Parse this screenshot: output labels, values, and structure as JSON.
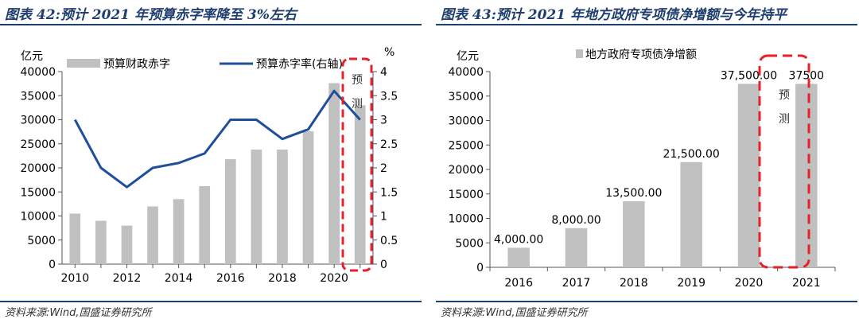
{
  "left": {
    "title": "图表 42:预计 2021 年预算赤字率降至 3%左右",
    "source": "资料来源:Wind,国盛证券研究所",
    "highlight_label": "预测",
    "chart_data": {
      "type": "bar+line",
      "left_unit": "亿元",
      "right_unit": "%",
      "ylim": [
        0,
        40000
      ],
      "y2lim": [
        0,
        4
      ],
      "yticks": [
        "0",
        "5000",
        "10000",
        "15000",
        "20000",
        "25000",
        "30000",
        "35000",
        "40000"
      ],
      "y2ticks": [
        "0",
        "0.5",
        "1",
        "1.5",
        "2",
        "2.5",
        "3",
        "3.5",
        "4"
      ],
      "xticks": [
        "2010",
        "2012",
        "2014",
        "2016",
        "2018",
        "2020"
      ],
      "categories": [
        2010,
        2011,
        2012,
        2013,
        2014,
        2015,
        2016,
        2017,
        2018,
        2019,
        2020,
        2021
      ],
      "series": [
        {
          "name": "预算财政赤字",
          "type": "bar",
          "values": [
            10500,
            9000,
            8000,
            12000,
            13500,
            16200,
            21800,
            23800,
            23800,
            27600,
            37600,
            33000
          ]
        },
        {
          "name": "预算赤字率(右轴)",
          "type": "line",
          "values": [
            3.0,
            2.0,
            1.6,
            2.0,
            2.1,
            2.3,
            3.0,
            3.0,
            2.6,
            2.8,
            3.6,
            3.0
          ]
        }
      ],
      "colors": {
        "bar": "#c0c0c0",
        "line": "#1f4e9c",
        "highlight": "#e8202a"
      }
    }
  },
  "right": {
    "title": "图表 43:预计 2021 年地方政府专项债净增额与今年持平",
    "source": "资料来源:Wind,国盛证券研究所",
    "highlight_label": "预测",
    "chart_data": {
      "type": "bar",
      "unit": "亿元",
      "ylim": [
        0,
        40000
      ],
      "yticks": [
        "0",
        "5000",
        "10000",
        "15000",
        "20000",
        "25000",
        "30000",
        "35000",
        "40000"
      ],
      "categories": [
        "2016",
        "2017",
        "2018",
        "2019",
        "2020",
        "2021"
      ],
      "series": [
        {
          "name": "地方政府专项债净增额",
          "values": [
            4000,
            8000,
            13500,
            21500,
            37500,
            37500
          ]
        }
      ],
      "data_labels": [
        "4,000.00",
        "8,000.00",
        "13,500.00",
        "21,500.00",
        "37,500.00",
        "37500"
      ],
      "colors": {
        "bar": "#c0c0c0",
        "highlight": "#e8202a"
      }
    }
  }
}
